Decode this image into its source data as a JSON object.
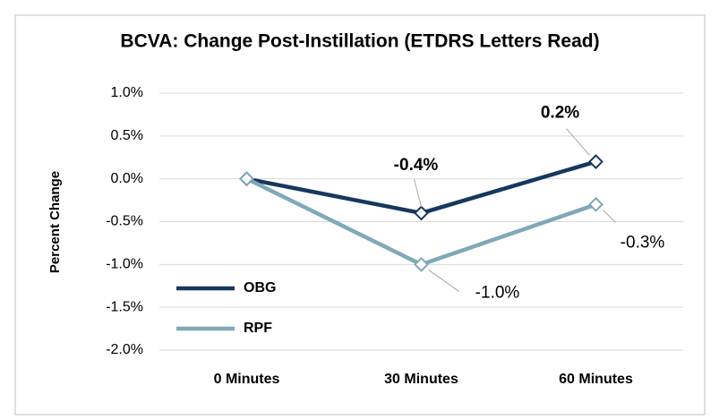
{
  "chart_data": {
    "type": "line",
    "title": "BCVA: Change Post-Instillation (ETDRS Letters Read)",
    "y_label": "Percent Change",
    "categories": [
      "0 Minutes",
      "30 Minutes",
      "60 Minutes"
    ],
    "series": [
      {
        "name": "OBG",
        "color": "#17375e",
        "values": [
          0,
          -0.4,
          0.2
        ],
        "value_labels": [
          null,
          "-0.4%",
          "0.2%"
        ]
      },
      {
        "name": "RPF",
        "color": "#7fa8b8",
        "values": [
          0,
          -1.0,
          -0.3
        ],
        "value_labels": [
          null,
          "-1.0%",
          "-0.3%"
        ]
      }
    ],
    "ylim": [
      -2,
      1
    ],
    "yticks": [
      {
        "value": 1,
        "label": "1.0%"
      },
      {
        "value": 0.5,
        "label": "0.5%"
      },
      {
        "value": 0,
        "label": "0.0%"
      },
      {
        "value": -0.5,
        "label": "-0.5%"
      },
      {
        "value": -1,
        "label": "-1.0%"
      },
      {
        "value": -1.5,
        "label": "-1.5%"
      },
      {
        "value": -2,
        "label": "-2.0%"
      }
    ],
    "grid": true,
    "legend": "left"
  }
}
